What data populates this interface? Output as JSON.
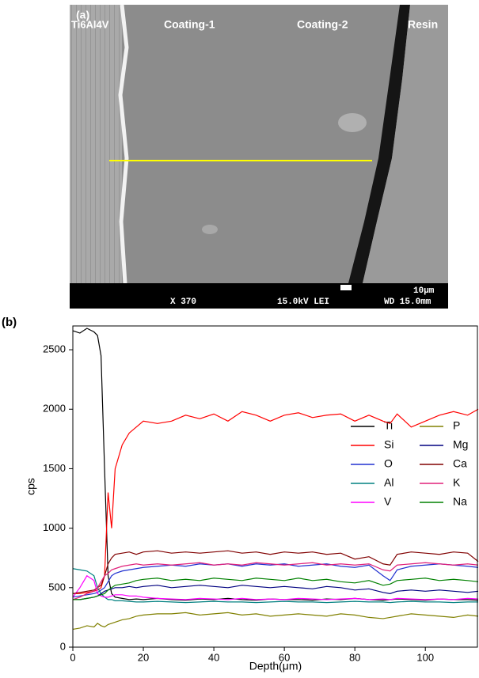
{
  "image": {
    "panel_label": "(a)",
    "labels": [
      "Ti6Al4V",
      "Coating-1",
      "Coating-2",
      "Resin"
    ],
    "scale_bar": "10μm",
    "info": [
      "X 370",
      "15.0kV LEI",
      "WD 15.0mm"
    ]
  },
  "chart_data": {
    "type": "line",
    "panel_label": "(b)",
    "xlabel": "Depth(μm)",
    "ylabel": "cps",
    "xlim": [
      0,
      115
    ],
    "xticks": [
      0,
      20,
      40,
      60,
      80,
      100
    ],
    "ylim": [
      0,
      2700
    ],
    "yticks": [
      0,
      500,
      1000,
      1500,
      2000,
      2500
    ],
    "x": [
      0,
      2,
      4,
      6,
      7,
      8,
      9,
      10,
      11,
      12,
      14,
      16,
      18,
      20,
      24,
      28,
      32,
      36,
      40,
      44,
      48,
      52,
      56,
      60,
      64,
      68,
      72,
      76,
      80,
      84,
      88,
      90,
      92,
      96,
      100,
      104,
      108,
      112,
      115
    ],
    "series": [
      {
        "name": "Ti",
        "color": "#000000",
        "values": [
          2660,
          2640,
          2680,
          2650,
          2620,
          2450,
          1500,
          600,
          450,
          420,
          410,
          400,
          405,
          400,
          410,
          400,
          395,
          405,
          400,
          410,
          400,
          395,
          405,
          400,
          400,
          395,
          405,
          400,
          410,
          400,
          395,
          400,
          405,
          400,
          395,
          405,
          400,
          400,
          395
        ]
      },
      {
        "name": "Si",
        "color": "#ff0000",
        "values": [
          450,
          450,
          460,
          470,
          480,
          500,
          600,
          1300,
          1000,
          1500,
          1700,
          1800,
          1850,
          1900,
          1880,
          1900,
          1950,
          1920,
          1960,
          1900,
          1980,
          1950,
          1900,
          1950,
          1970,
          1930,
          1950,
          1960,
          1900,
          1950,
          1900,
          1880,
          1960,
          1850,
          1900,
          1950,
          1980,
          1950,
          2000
        ]
      },
      {
        "name": "O",
        "color": "#2030d0",
        "values": [
          420,
          430,
          440,
          450,
          460,
          480,
          500,
          550,
          600,
          620,
          640,
          650,
          660,
          670,
          680,
          690,
          680,
          700,
          690,
          700,
          680,
          700,
          690,
          700,
          680,
          690,
          700,
          680,
          670,
          690,
          600,
          560,
          650,
          680,
          690,
          700,
          690,
          680,
          670
        ]
      },
      {
        "name": "Al",
        "color": "#008080",
        "values": [
          660,
          650,
          640,
          600,
          500,
          450,
          420,
          400,
          400,
          390,
          390,
          385,
          380,
          380,
          385,
          380,
          375,
          380,
          385,
          380,
          380,
          375,
          380,
          385,
          380,
          380,
          375,
          380,
          385,
          380,
          380,
          375,
          380,
          385,
          380,
          380,
          375,
          380,
          380
        ]
      },
      {
        "name": "V",
        "color": "#ff00ff",
        "values": [
          420,
          500,
          600,
          560,
          450,
          430,
          420,
          420,
          430,
          440,
          440,
          430,
          430,
          420,
          410,
          405,
          400,
          410,
          405,
          400,
          410,
          400,
          405,
          400,
          410,
          405,
          400,
          405,
          410,
          400,
          405,
          400,
          410,
          405,
          400,
          405,
          400,
          410,
          405
        ]
      },
      {
        "name": "P",
        "color": "#808000",
        "values": [
          150,
          160,
          180,
          170,
          200,
          180,
          170,
          190,
          200,
          210,
          230,
          240,
          260,
          270,
          280,
          280,
          290,
          270,
          280,
          290,
          270,
          280,
          260,
          270,
          280,
          270,
          260,
          280,
          270,
          250,
          240,
          250,
          260,
          280,
          270,
          260,
          250,
          270,
          260
        ]
      },
      {
        "name": "Mg",
        "color": "#000080",
        "values": [
          400,
          400,
          410,
          420,
          430,
          450,
          470,
          480,
          490,
          500,
          500,
          510,
          500,
          510,
          520,
          500,
          510,
          520,
          510,
          500,
          520,
          510,
          500,
          510,
          500,
          490,
          510,
          500,
          480,
          490,
          460,
          450,
          470,
          480,
          470,
          480,
          470,
          460,
          470
        ]
      },
      {
        "name": "Ca",
        "color": "#800000",
        "values": [
          450,
          460,
          470,
          480,
          500,
          520,
          600,
          700,
          750,
          780,
          790,
          800,
          780,
          800,
          810,
          790,
          800,
          790,
          800,
          810,
          790,
          800,
          780,
          800,
          790,
          800,
          780,
          790,
          740,
          760,
          700,
          690,
          780,
          800,
          790,
          780,
          800,
          790,
          720
        ]
      },
      {
        "name": "K",
        "color": "#e0207a",
        "values": [
          400,
          420,
          450,
          470,
          500,
          550,
          600,
          620,
          650,
          660,
          680,
          690,
          700,
          690,
          700,
          690,
          700,
          710,
          690,
          700,
          690,
          710,
          700,
          690,
          700,
          710,
          690,
          700,
          690,
          700,
          650,
          640,
          690,
          700,
          710,
          700,
          690,
          700,
          690
        ]
      },
      {
        "name": "Na",
        "color": "#008000",
        "values": [
          400,
          400,
          410,
          420,
          430,
          440,
          450,
          480,
          500,
          520,
          530,
          540,
          560,
          570,
          580,
          560,
          570,
          560,
          580,
          570,
          560,
          580,
          570,
          560,
          580,
          560,
          570,
          550,
          540,
          560,
          520,
          530,
          560,
          570,
          580,
          560,
          570,
          560,
          550
        ]
      }
    ]
  }
}
